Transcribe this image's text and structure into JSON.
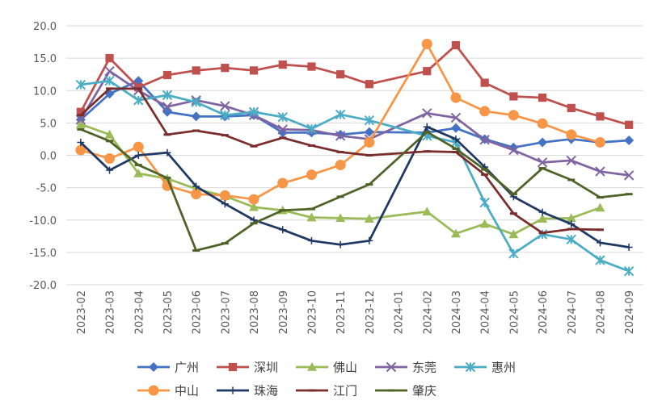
{
  "chart_data": {
    "type": "line",
    "title": "",
    "xlabel": "",
    "ylabel": "",
    "ylim": [
      -20,
      20
    ],
    "y_ticks": [
      20,
      15,
      10,
      5,
      0,
      -5,
      -10,
      -15,
      -20
    ],
    "y_tick_labels": [
      "20.0",
      "15.0",
      "10.0",
      "5.0",
      "0.0",
      "-5.0",
      "-10.0",
      "-15.0",
      "-20.0"
    ],
    "grid": "horizontal",
    "legend_position": "bottom",
    "categories": [
      "2023-02",
      "2023-03",
      "2023-04",
      "2023-05",
      "2023-06",
      "2023-07",
      "2023-08",
      "2023-09",
      "2023-10",
      "2023-11",
      "2023-12",
      "2024-01",
      "2024-02",
      "2024-03",
      "2024-04",
      "2024-05",
      "2024-06",
      "2024-07",
      "2024-08",
      "2024-09"
    ],
    "series": [
      {
        "name": "广州",
        "color": "#4472C4",
        "marker": "diamond",
        "values": [
          5.5,
          9.5,
          11.5,
          6.7,
          6.0,
          6.0,
          6.2,
          3.5,
          3.5,
          3.2,
          3.6,
          null,
          3.5,
          4.2,
          2.5,
          1.2,
          2.0,
          2.5,
          2.0,
          2.3
        ]
      },
      {
        "name": "深圳",
        "color": "#C0504D",
        "marker": "square",
        "values": [
          6.7,
          15.0,
          10.5,
          12.4,
          13.1,
          13.5,
          13.1,
          14.0,
          13.7,
          12.5,
          11.0,
          null,
          13.0,
          17.0,
          11.2,
          9.1,
          8.9,
          7.3,
          6.0,
          4.7
        ]
      },
      {
        "name": "佛山",
        "color": "#9BBB59",
        "marker": "triangle",
        "values": [
          4.8,
          3.2,
          -2.8,
          -3.6,
          -5.2,
          -6.3,
          -8.0,
          -8.5,
          -9.6,
          -9.7,
          -9.8,
          null,
          -8.7,
          -12.1,
          -10.6,
          -12.2,
          -9.8,
          -9.7,
          -8.1,
          null
        ]
      },
      {
        "name": "东莞",
        "color": "#8064A2",
        "marker": "x",
        "values": [
          5.5,
          13.0,
          10.0,
          7.5,
          8.5,
          7.6,
          6.2,
          4.0,
          3.9,
          3.0,
          2.5,
          null,
          6.5,
          5.8,
          2.4,
          0.8,
          -1.1,
          -0.8,
          -2.5,
          -3.1
        ]
      },
      {
        "name": "惠州",
        "color": "#4BACC6",
        "marker": "asterisk",
        "values": [
          10.9,
          11.5,
          8.5,
          9.3,
          8.2,
          6.2,
          6.7,
          5.9,
          4.1,
          6.3,
          5.4,
          null,
          3.0,
          2.0,
          -7.3,
          -15.2,
          -12.2,
          -13.0,
          -16.2,
          -17.9
        ]
      },
      {
        "name": "中山",
        "color": "#F79646",
        "marker": "circle",
        "values": [
          0.8,
          -0.5,
          1.3,
          -4.7,
          -6.0,
          -6.2,
          -6.8,
          -4.3,
          -3.0,
          -1.5,
          2.0,
          null,
          17.2,
          8.9,
          6.8,
          6.2,
          4.9,
          3.2,
          2.0,
          null
        ]
      },
      {
        "name": "珠海",
        "color": "#1F3864",
        "marker": "plus",
        "values": [
          2.0,
          -2.3,
          0.0,
          0.4,
          -4.8,
          -7.5,
          -10.0,
          -11.5,
          -13.2,
          -13.8,
          -13.2,
          null,
          4.4,
          2.5,
          -1.8,
          -6.4,
          -8.8,
          -10.6,
          -13.5,
          -14.2
        ]
      },
      {
        "name": "江门",
        "color": "#7B2C2C",
        "marker": "dash",
        "values": [
          6.2,
          10.3,
          10.3,
          3.2,
          3.8,
          3.1,
          1.4,
          2.7,
          1.5,
          0.5,
          0.0,
          null,
          0.6,
          0.5,
          -3.0,
          -9.0,
          -12.0,
          -11.4,
          -11.5,
          null
        ]
      },
      {
        "name": "肇庆",
        "color": "#4F6228",
        "marker": "dash",
        "values": [
          4.0,
          2.2,
          -1.5,
          -3.5,
          -14.7,
          -13.6,
          -10.5,
          -8.5,
          -8.3,
          -6.4,
          -4.5,
          null,
          3.6,
          1.0,
          -2.2,
          -6.0,
          -2.0,
          -3.8,
          -6.5,
          -6.0
        ]
      }
    ]
  }
}
